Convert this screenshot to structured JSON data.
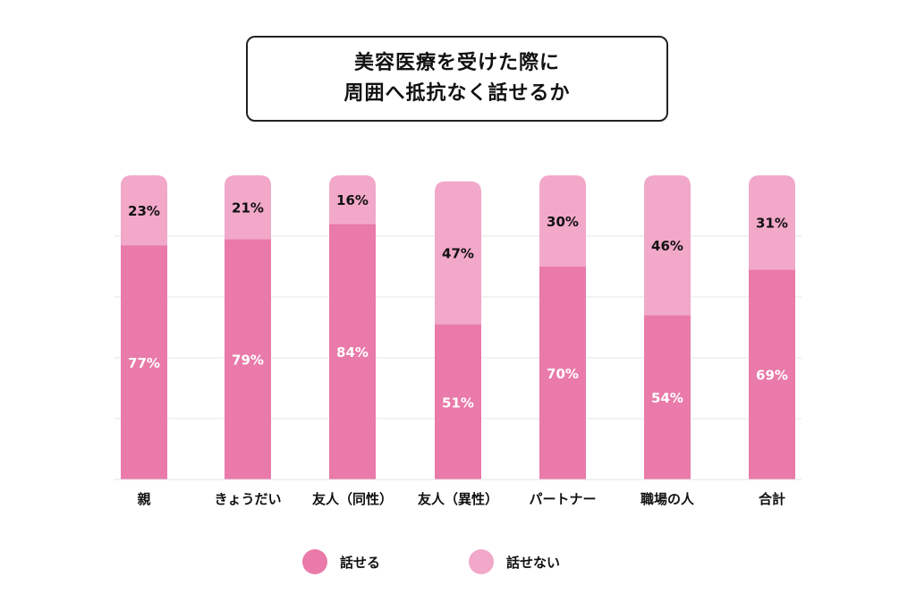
{
  "title": {
    "line1": "美容医療を受けた際に",
    "line2": "周囲へ抵抗なく話せるか"
  },
  "colors": {
    "can_talk": "#e97aa9",
    "cannot_talk": "#f2a8c9",
    "grid": "#e6e6e6"
  },
  "chart_data": {
    "type": "bar",
    "stacked": true,
    "categories": [
      "親",
      "きょうだい",
      "友人（同性）",
      "友人（異性）",
      "パートナー",
      "職場の人",
      "合計"
    ],
    "series": [
      {
        "name": "話せる",
        "values": [
          77,
          79,
          84,
          51,
          70,
          54,
          69
        ],
        "labels": [
          "77%",
          "79%",
          "84%",
          "51%",
          "70%",
          "54%",
          "69%"
        ]
      },
      {
        "name": "話せない",
        "values": [
          23,
          21,
          16,
          47,
          30,
          46,
          31
        ],
        "labels": [
          "23%",
          "21%",
          "16%",
          "47%",
          "30%",
          "46%",
          "31%"
        ]
      }
    ],
    "ylim": [
      0,
      100
    ],
    "grid": true,
    "legend": "bottom"
  },
  "legend": [
    {
      "label": "話せる",
      "color_key": "can_talk"
    },
    {
      "label": "話せない",
      "color_key": "cannot_talk"
    }
  ]
}
